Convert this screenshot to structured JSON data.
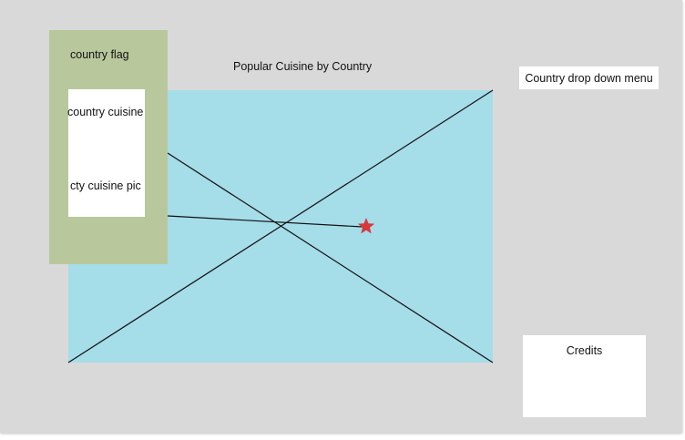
{
  "header": {
    "title": "Popular Cuisine by Country"
  },
  "info_panel": {
    "flag_label": "country flag",
    "cuisine_label": "country cuisine",
    "picture_label": "cty cuisine pic",
    "panel_color": "#b9c89c",
    "card_color": "#ffffff"
  },
  "map": {
    "placeholder_color": "#a5dde9",
    "marker_icon": "star-icon",
    "marker_color": "#d9373b"
  },
  "dropdown": {
    "label": "Country drop down menu"
  },
  "credits": {
    "label": "Credits"
  },
  "colors": {
    "background": "#d9d9d9",
    "line": "#111111"
  }
}
